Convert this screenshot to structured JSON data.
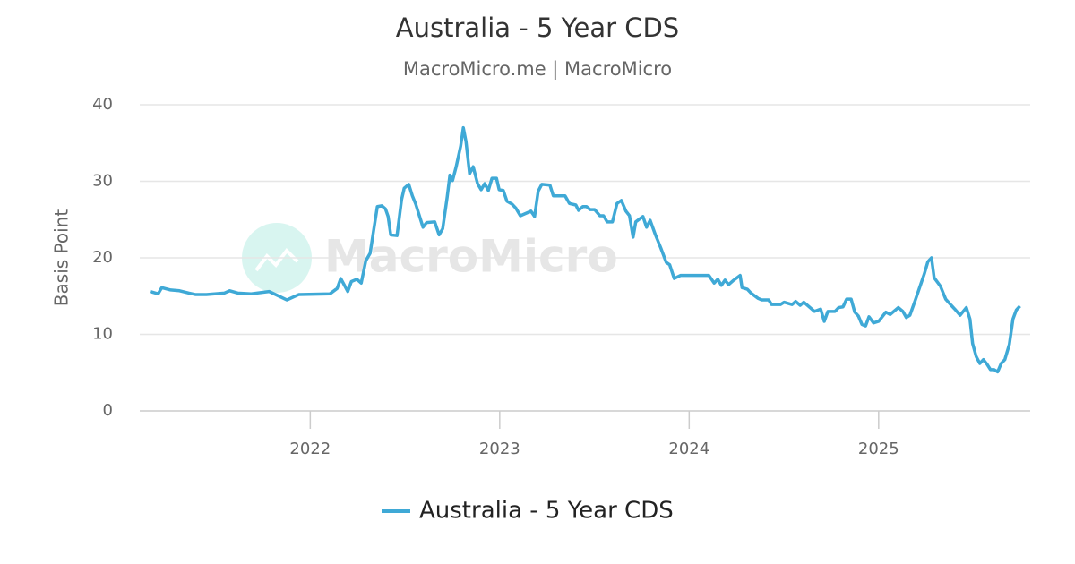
{
  "chart_data": {
    "type": "line",
    "title": "Australia - 5 Year CDS",
    "subtitle": "MacroMicro.me | MacroMicro",
    "watermark": "MacroMicro",
    "y_label": "Basis Point",
    "xlim": [
      2021.1,
      2025.8
    ],
    "xticks": [
      2022,
      2023,
      2024,
      2025
    ],
    "ylim": [
      0,
      40
    ],
    "yticks": [
      0,
      10,
      20,
      30,
      40
    ],
    "grid": true,
    "legend": "bottom",
    "x": [
      2021.154,
      2021.197,
      2021.216,
      2021.263,
      2021.31,
      2021.358,
      2021.395,
      2021.452,
      2021.547,
      2021.575,
      2021.617,
      2021.688,
      2021.783,
      2021.877,
      2021.939,
      2022.104,
      2022.142,
      2022.161,
      2022.198,
      2022.217,
      2022.246,
      2022.269,
      2022.293,
      2022.316,
      2022.354,
      2022.378,
      2022.397,
      2022.411,
      2022.425,
      2022.458,
      2022.482,
      2022.496,
      2022.52,
      2022.539,
      2022.557,
      2022.595,
      2022.614,
      2022.657,
      2022.68,
      2022.699,
      2022.723,
      2022.737,
      2022.751,
      2022.77,
      2022.794,
      2022.808,
      2022.822,
      2022.841,
      2022.86,
      2022.883,
      2022.902,
      2022.921,
      2022.94,
      2022.959,
      2022.983,
      2022.997,
      2023.019,
      2023.038,
      2023.066,
      2023.085,
      2023.109,
      2023.128,
      2023.165,
      2023.184,
      2023.203,
      2023.222,
      2023.265,
      2023.283,
      2023.345,
      2023.368,
      2023.402,
      2023.416,
      2023.439,
      2023.458,
      2023.477,
      2023.501,
      2023.529,
      2023.548,
      2023.567,
      2023.595,
      2023.619,
      2023.642,
      2023.666,
      2023.685,
      2023.704,
      2023.718,
      2023.756,
      2023.775,
      2023.794,
      2023.822,
      2023.85,
      2023.879,
      2023.897,
      2023.921,
      2023.954,
      2024.104,
      2024.132,
      2024.151,
      2024.17,
      2024.189,
      2024.208,
      2024.231,
      2024.269,
      2024.279,
      2024.307,
      2024.326,
      2024.364,
      2024.383,
      2024.42,
      2024.435,
      2024.482,
      2024.501,
      2024.543,
      2024.562,
      2024.586,
      2024.605,
      2024.638,
      2024.661,
      2024.694,
      2024.713,
      2024.732,
      2024.77,
      2024.789,
      2024.812,
      2024.831,
      2024.855,
      2024.874,
      2024.893,
      2024.912,
      2024.931,
      2024.949,
      2024.973,
      2025.0,
      2025.038,
      2025.061,
      2025.104,
      2025.128,
      2025.146,
      2025.165,
      2025.194,
      2025.241,
      2025.26,
      2025.279,
      2025.293,
      2025.326,
      2025.354,
      2025.383,
      2025.402,
      2025.43,
      2025.463,
      2025.482,
      2025.496,
      2025.515,
      2025.534,
      2025.553,
      2025.572,
      2025.59,
      2025.609,
      2025.628,
      2025.647,
      2025.666,
      2025.69,
      2025.709,
      2025.727,
      2025.746
    ],
    "series": [
      {
        "name": "Australia - 5 Year CDS",
        "color": "#3fa9d6",
        "values": [
          15.6,
          15.3,
          16.1,
          15.8,
          15.7,
          15.4,
          15.2,
          15.2,
          15.4,
          15.7,
          15.4,
          15.3,
          15.6,
          14.5,
          15.2,
          15.3,
          16.0,
          17.3,
          15.6,
          16.9,
          17.2,
          16.7,
          19.6,
          20.6,
          26.7,
          26.8,
          26.4,
          25.4,
          23.0,
          22.9,
          27.6,
          29.1,
          29.6,
          28.1,
          27.0,
          24.0,
          24.6,
          24.7,
          23.0,
          23.8,
          28.0,
          30.8,
          30.1,
          31.9,
          34.6,
          37.0,
          35.2,
          31.0,
          31.9,
          29.7,
          28.9,
          29.7,
          28.8,
          30.4,
          30.4,
          28.9,
          28.8,
          27.4,
          27.0,
          26.5,
          25.5,
          25.7,
          26.1,
          25.4,
          28.7,
          29.6,
          29.5,
          28.1,
          28.1,
          27.1,
          26.9,
          26.2,
          26.7,
          26.7,
          26.3,
          26.3,
          25.5,
          25.5,
          24.7,
          24.7,
          27.1,
          27.5,
          26.1,
          25.5,
          22.7,
          24.7,
          25.4,
          24.0,
          24.9,
          23.0,
          21.3,
          19.4,
          19.1,
          17.3,
          17.7,
          17.7,
          16.7,
          17.2,
          16.4,
          17.1,
          16.5,
          17.0,
          17.7,
          16.1,
          15.9,
          15.4,
          14.7,
          14.5,
          14.5,
          13.9,
          13.9,
          14.2,
          13.9,
          14.3,
          13.8,
          14.2,
          13.5,
          13.0,
          13.3,
          11.7,
          13.0,
          13.0,
          13.5,
          13.6,
          14.6,
          14.6,
          12.9,
          12.4,
          11.3,
          11.1,
          12.3,
          11.5,
          11.7,
          12.9,
          12.6,
          13.5,
          13.0,
          12.2,
          12.5,
          14.5,
          17.9,
          19.5,
          20.0,
          17.4,
          16.3,
          14.6,
          13.8,
          13.3,
          12.5,
          13.5,
          12.0,
          8.8,
          7.1,
          6.2,
          6.7,
          6.1,
          5.4,
          5.4,
          5.1,
          6.2,
          6.7,
          8.7,
          12.0,
          13.2,
          13.7
        ]
      }
    ]
  }
}
